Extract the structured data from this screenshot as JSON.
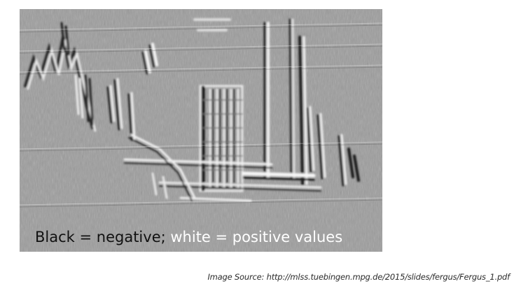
{
  "figure": {
    "caption_negative": "Black = negative;",
    "caption_positive": "white = positive values",
    "colors": {
      "background": "#9a9a9a",
      "negative": "#111111",
      "positive": "#ffffff"
    }
  },
  "source": {
    "text": "Image Source: http://mlss.tuebingen.mpg.de/2015/slides/fergus/Fergus_1.pdf"
  }
}
